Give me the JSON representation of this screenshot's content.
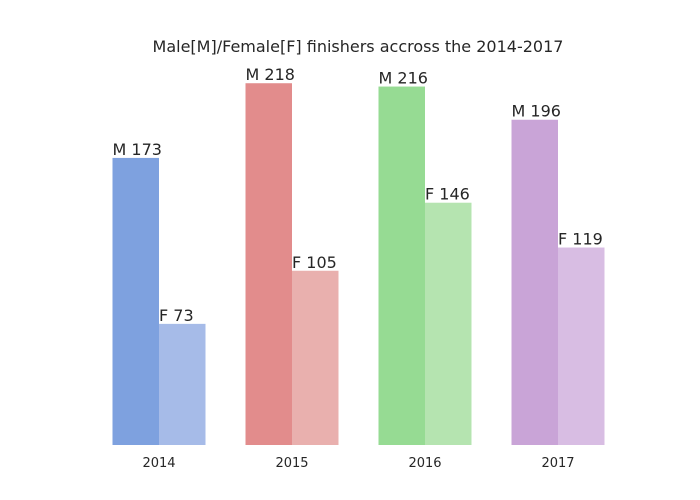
{
  "chart_data": {
    "type": "bar",
    "title": "Male[M]/Female[F] finishers accross the 2014-2017",
    "xlabel": "",
    "ylabel": "",
    "categories": [
      "2014",
      "2015",
      "2016",
      "2017"
    ],
    "series": [
      {
        "values": [
          173,
          218,
          216,
          196
        ],
        "labels": [
          "M 173",
          "M 218",
          "M 216",
          "M 196"
        ],
        "colors": [
          "#7ea1df",
          "#e28c8c",
          "#96db93",
          "#c9a4d7"
        ]
      },
      {
        "values": [
          73,
          105,
          146,
          119
        ],
        "labels": [
          "F 73",
          "F 105",
          "F 146",
          "F 119"
        ],
        "colors": [
          "#a6bbe8",
          "#e9b0ae",
          "#b5e4b0",
          "#d8bde3"
        ]
      }
    ],
    "ylim": [
      0,
      232
    ],
    "grid": false,
    "legend": "none"
  }
}
